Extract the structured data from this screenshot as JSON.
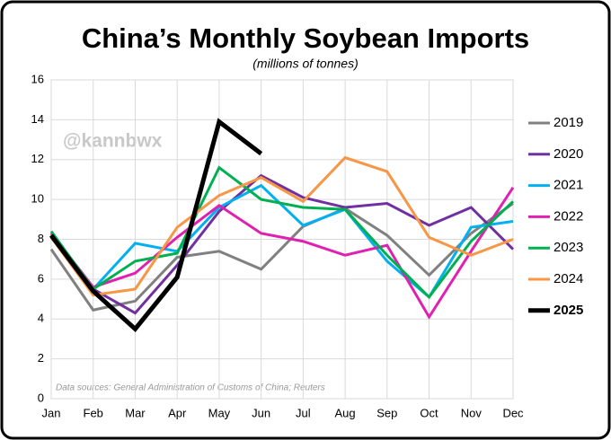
{
  "chart_data": {
    "type": "line",
    "title": "China’s Monthly Soybean Imports",
    "subtitle": "(millions of tonnes)",
    "watermark": "@kannbwx",
    "source": "Data sources: General Administration of Customs of China; Reuters",
    "categories": [
      "Jan",
      "Feb",
      "Mar",
      "Apr",
      "May",
      "Jun",
      "Jul",
      "Aug",
      "Sep",
      "Oct",
      "Nov",
      "Dec"
    ],
    "ylim": [
      0,
      16
    ],
    "yticks": [
      0,
      2,
      4,
      6,
      8,
      10,
      12,
      14,
      16
    ],
    "grid": true,
    "legend": "right",
    "series": [
      {
        "name": "2019",
        "color": "#808080",
        "values": [
          7.5,
          4.45,
          4.9,
          7.1,
          7.4,
          6.5,
          8.65,
          9.55,
          8.2,
          6.2,
          8.3,
          9.8
        ]
      },
      {
        "name": "2020",
        "color": "#7030a0",
        "values": [
          8.1,
          5.5,
          4.3,
          6.7,
          9.4,
          11.2,
          10.1,
          9.6,
          9.8,
          8.7,
          9.6,
          7.5
        ]
      },
      {
        "name": "2021",
        "color": "#00b0f0",
        "values": [
          8.3,
          5.5,
          7.8,
          7.4,
          9.6,
          10.7,
          8.7,
          9.5,
          6.9,
          5.1,
          8.6,
          8.9
        ]
      },
      {
        "name": "2022",
        "color": "#e020b0",
        "values": [
          8.3,
          5.6,
          6.3,
          8.1,
          9.7,
          8.3,
          7.9,
          7.2,
          7.7,
          4.1,
          7.4,
          10.6
        ]
      },
      {
        "name": "2023",
        "color": "#00b050",
        "values": [
          8.4,
          5.5,
          6.9,
          7.3,
          11.6,
          10.0,
          9.6,
          9.5,
          7.2,
          5.1,
          7.9,
          9.9
        ]
      },
      {
        "name": "2024",
        "color": "#f79646",
        "values": [
          8.1,
          5.2,
          5.5,
          8.6,
          10.2,
          11.1,
          9.9,
          12.1,
          11.4,
          8.1,
          7.2,
          8.0
        ]
      },
      {
        "name": "2025",
        "color": "#000000",
        "values": [
          8.2,
          5.4,
          3.5,
          6.1,
          13.9,
          12.3,
          null,
          null,
          null,
          null,
          null,
          null
        ]
      }
    ]
  }
}
